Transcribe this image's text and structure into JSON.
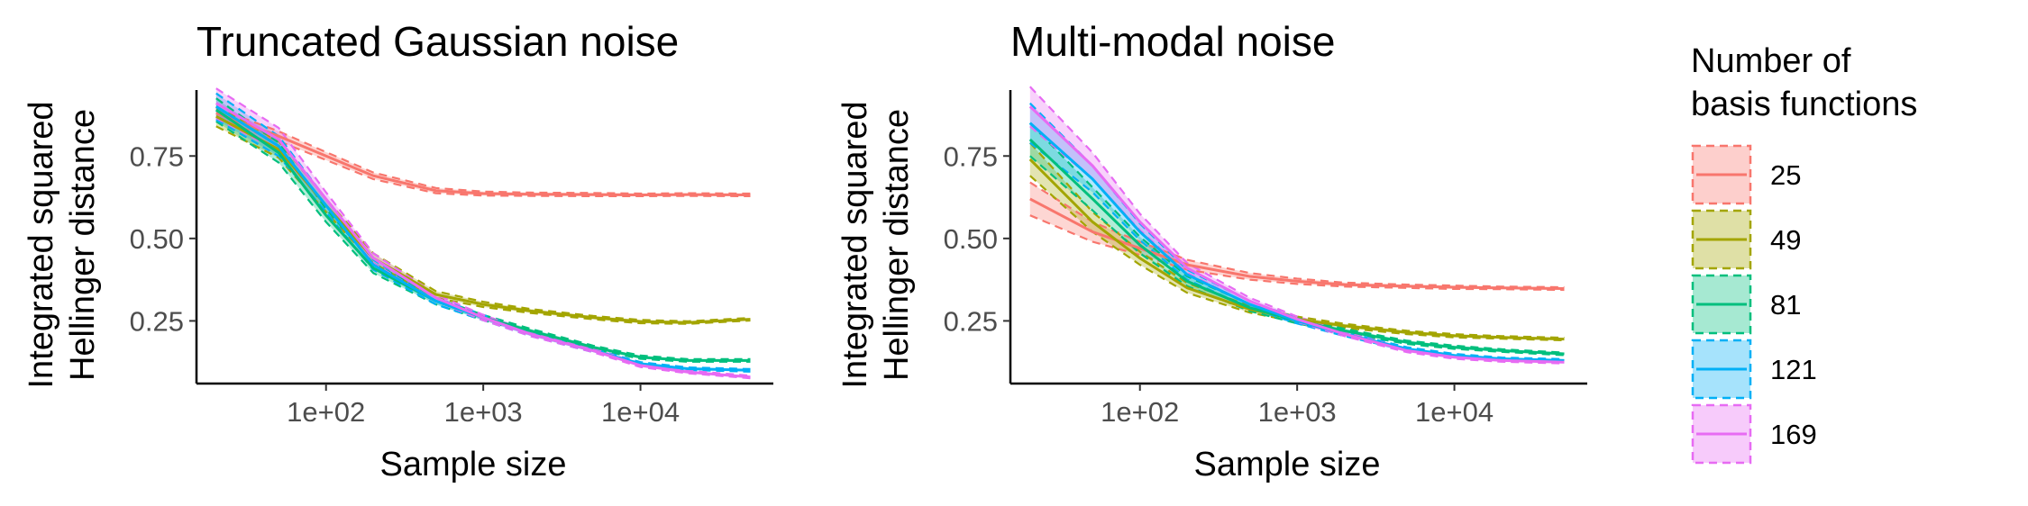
{
  "chart_data": [
    {
      "type": "line",
      "title": "Truncated Gaussian noise",
      "xlabel": "Sample size",
      "ylabel": [
        "Integrated squared",
        "Hellinger distance"
      ],
      "xscale": "log10",
      "xlim": [
        15,
        70000
      ],
      "ylim": [
        0.06,
        0.95
      ],
      "xticks": [
        {
          "value": 100,
          "label": "1e+02"
        },
        {
          "value": 1000,
          "label": "1e+03"
        },
        {
          "value": 10000,
          "label": "1e+04"
        }
      ],
      "yticks": [
        {
          "value": 0.25,
          "label": "0.25"
        },
        {
          "value": 0.5,
          "label": "0.50"
        },
        {
          "value": 0.75,
          "label": "0.75"
        }
      ],
      "x": [
        20,
        50,
        100,
        200,
        500,
        1000,
        2000,
        5000,
        10000,
        20000,
        50000
      ],
      "series": [
        {
          "name": "25",
          "values": [
            0.88,
            0.81,
            0.75,
            0.69,
            0.645,
            0.636,
            0.634,
            0.633,
            0.632,
            0.633,
            0.632
          ],
          "band": [
            0.015,
            0.015,
            0.012,
            0.01,
            0.008,
            0.006,
            0.005,
            0.005,
            0.004,
            0.004,
            0.004
          ]
        },
        {
          "name": "49",
          "values": [
            0.87,
            0.77,
            0.6,
            0.44,
            0.33,
            0.3,
            0.28,
            0.26,
            0.248,
            0.245,
            0.255
          ],
          "band": [
            0.03,
            0.025,
            0.02,
            0.015,
            0.01,
            0.008,
            0.006,
            0.005,
            0.005,
            0.004,
            0.004
          ]
        },
        {
          "name": "81",
          "values": [
            0.89,
            0.76,
            0.57,
            0.41,
            0.31,
            0.26,
            0.22,
            0.17,
            0.14,
            0.13,
            0.13
          ],
          "band": [
            0.035,
            0.03,
            0.02,
            0.015,
            0.01,
            0.008,
            0.006,
            0.005,
            0.005,
            0.004,
            0.004
          ]
        },
        {
          "name": "121",
          "values": [
            0.9,
            0.78,
            0.6,
            0.42,
            0.31,
            0.26,
            0.21,
            0.16,
            0.12,
            0.105,
            0.1
          ],
          "band": [
            0.04,
            0.03,
            0.02,
            0.015,
            0.01,
            0.008,
            0.006,
            0.005,
            0.005,
            0.004,
            0.004
          ]
        },
        {
          "name": "169",
          "values": [
            0.91,
            0.8,
            0.62,
            0.44,
            0.32,
            0.26,
            0.21,
            0.16,
            0.115,
            0.095,
            0.08
          ],
          "band": [
            0.045,
            0.035,
            0.02,
            0.015,
            0.01,
            0.008,
            0.006,
            0.005,
            0.005,
            0.004,
            0.004
          ]
        }
      ]
    },
    {
      "type": "line",
      "title": "Multi-modal noise",
      "xlabel": "Sample size",
      "ylabel": [
        "Integrated squared",
        "Hellinger distance"
      ],
      "xscale": "log10",
      "xlim": [
        15,
        70000
      ],
      "ylim": [
        0.06,
        0.95
      ],
      "xticks": [
        {
          "value": 100,
          "label": "1e+02"
        },
        {
          "value": 1000,
          "label": "1e+03"
        },
        {
          "value": 10000,
          "label": "1e+04"
        }
      ],
      "yticks": [
        {
          "value": 0.25,
          "label": "0.25"
        },
        {
          "value": 0.5,
          "label": "0.50"
        },
        {
          "value": 0.75,
          "label": "0.75"
        }
      ],
      "x": [
        20,
        50,
        100,
        200,
        500,
        1000,
        2000,
        5000,
        10000,
        20000,
        50000
      ],
      "series": [
        {
          "name": "25",
          "values": [
            0.62,
            0.52,
            0.47,
            0.42,
            0.385,
            0.37,
            0.36,
            0.355,
            0.352,
            0.35,
            0.348
          ],
          "band": [
            0.05,
            0.03,
            0.02,
            0.015,
            0.01,
            0.008,
            0.006,
            0.005,
            0.005,
            0.004,
            0.004
          ]
        },
        {
          "name": "49",
          "values": [
            0.74,
            0.55,
            0.44,
            0.35,
            0.285,
            0.255,
            0.235,
            0.215,
            0.205,
            0.2,
            0.195
          ],
          "band": [
            0.05,
            0.03,
            0.02,
            0.015,
            0.01,
            0.008,
            0.006,
            0.005,
            0.005,
            0.004,
            0.004
          ]
        },
        {
          "name": "81",
          "values": [
            0.8,
            0.62,
            0.48,
            0.37,
            0.29,
            0.25,
            0.22,
            0.185,
            0.17,
            0.16,
            0.15
          ],
          "band": [
            0.05,
            0.035,
            0.025,
            0.015,
            0.01,
            0.008,
            0.006,
            0.005,
            0.005,
            0.004,
            0.004
          ]
        },
        {
          "name": "121",
          "values": [
            0.85,
            0.68,
            0.52,
            0.39,
            0.3,
            0.25,
            0.21,
            0.165,
            0.145,
            0.135,
            0.13
          ],
          "band": [
            0.06,
            0.04,
            0.025,
            0.015,
            0.01,
            0.008,
            0.006,
            0.005,
            0.005,
            0.004,
            0.004
          ]
        },
        {
          "name": "169",
          "values": [
            0.9,
            0.72,
            0.55,
            0.41,
            0.31,
            0.255,
            0.21,
            0.16,
            0.14,
            0.13,
            0.125
          ],
          "band": [
            0.06,
            0.04,
            0.025,
            0.015,
            0.01,
            0.008,
            0.006,
            0.005,
            0.005,
            0.004,
            0.004
          ]
        }
      ]
    }
  ],
  "legend": {
    "title": [
      "Number of",
      "basis functions"
    ],
    "items": [
      {
        "label": "25",
        "color": "#F8766D"
      },
      {
        "label": "49",
        "color": "#A3A500"
      },
      {
        "label": "81",
        "color": "#00BF7D"
      },
      {
        "label": "121",
        "color": "#00B0F6"
      },
      {
        "label": "169",
        "color": "#E76BF3"
      }
    ]
  }
}
